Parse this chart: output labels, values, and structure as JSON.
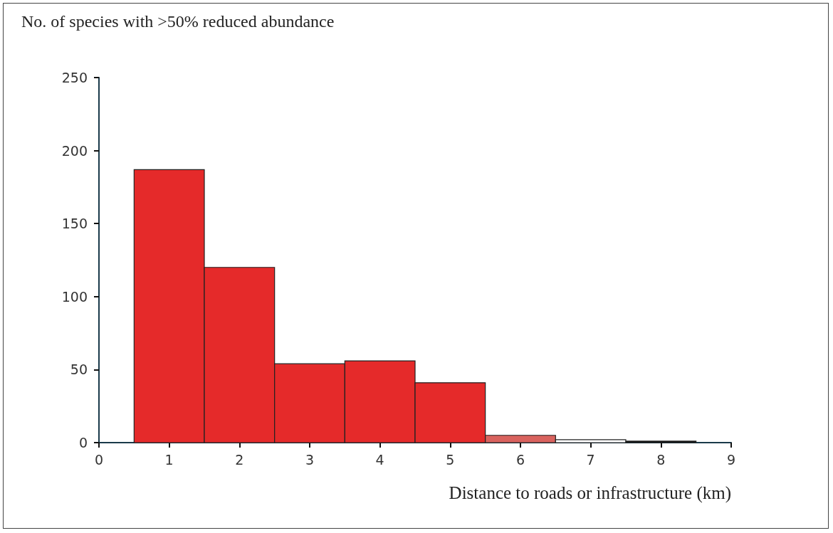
{
  "chart_data": {
    "type": "histogram",
    "title": "No. of species with >50% reduced abundance",
    "xlabel": "Distance to roads or infrastructure (km)",
    "bins": [
      0.5,
      1.5,
      2.5,
      3.5,
      4.5,
      5.5,
      6.5,
      7.5,
      8.5
    ],
    "values": [
      187,
      120,
      54,
      56,
      41,
      5,
      2,
      1
    ],
    "colors": [
      "#e52a2a",
      "#e52a2a",
      "#e52a2a",
      "#e52a2a",
      "#e52a2a",
      "#d9625e",
      "#ffffff",
      "#111111"
    ],
    "xlim": [
      0,
      9
    ],
    "xticks": [
      0,
      1,
      2,
      3,
      4,
      5,
      6,
      7,
      8,
      9
    ],
    "ylim": [
      0,
      250
    ],
    "yticks": [
      0,
      50,
      100,
      150,
      200,
      250
    ]
  }
}
